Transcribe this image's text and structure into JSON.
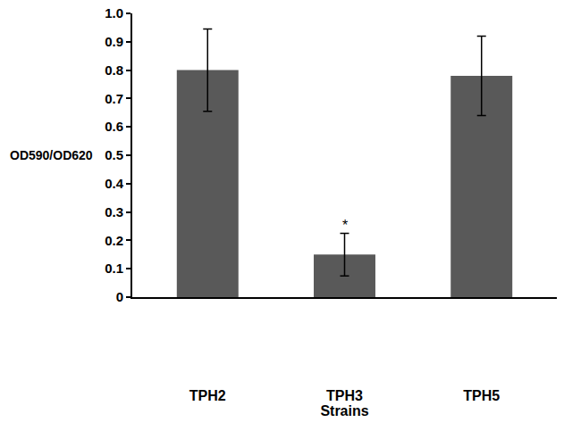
{
  "chart_data": {
    "type": "bar",
    "x_label": "Strains",
    "y_label": "OD590/OD620",
    "categories": [
      "TPH2",
      "TPH3",
      "TPH5"
    ],
    "values": [
      0.8,
      0.15,
      0.78
    ],
    "error": [
      0.145,
      0.075,
      0.14
    ],
    "significance": [
      null,
      "*",
      null
    ],
    "color": "#595959",
    "ylim": [
      0,
      1
    ],
    "yticks": [
      0,
      0.1,
      0.2,
      0.3,
      0.4,
      0.5,
      0.6,
      0.7,
      0.8,
      0.9,
      {
        "value": 1,
        "label": "1.0"
      }
    ],
    "grid": false
  }
}
